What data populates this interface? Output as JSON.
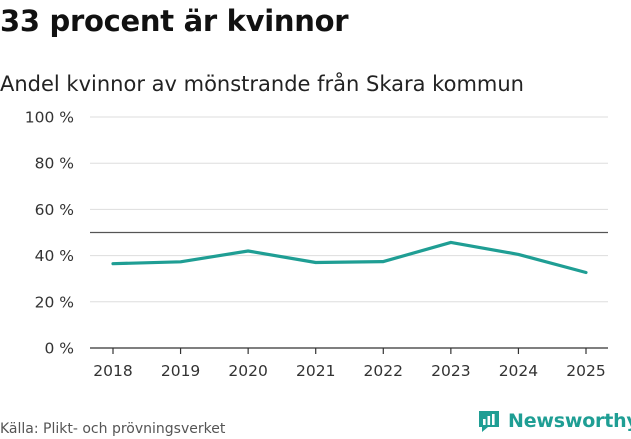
{
  "headline": "33 procent är kvinnor",
  "chart_data": {
    "type": "line",
    "title": "Andel kvinnor av mönstrande från Skara kommun",
    "categories": [
      "2018",
      "2019",
      "2020",
      "2021",
      "2022",
      "2023",
      "2024",
      "2025"
    ],
    "series": [
      {
        "name": "Andel kvinnor",
        "values": [
          36.5,
          37.3,
          42.0,
          37.0,
          37.4,
          45.7,
          40.5,
          32.7
        ]
      }
    ],
    "y_ticks": [
      0,
      20,
      40,
      60,
      80,
      100
    ],
    "y_tick_labels": [
      "0 %",
      "20 %",
      "40 %",
      "60 %",
      "80 %",
      "100 %"
    ],
    "ylim": [
      0,
      100
    ],
    "reference_line": 50,
    "xlabel": "",
    "ylabel": "",
    "grid": true,
    "colors": {
      "line": "#1f9e94",
      "grid": "#dddddd",
      "reference": "#555555"
    }
  },
  "footer": {
    "source": "Källa: Plikt- och prövningsverket",
    "brand": "Newsworthy"
  }
}
